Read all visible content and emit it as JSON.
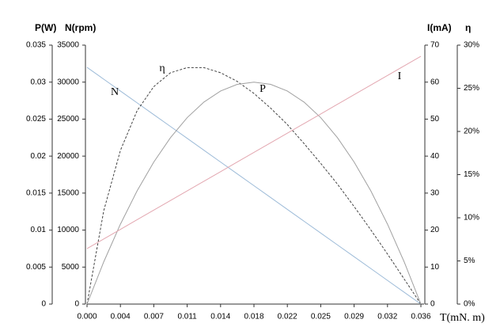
{
  "chart_data": {
    "type": "line",
    "y_label": "P(W)",
    "y2_label": "N(rpm)",
    "y3_label": "I(mA)",
    "y4_label": "η",
    "x_label": "T(mN. m)",
    "x": [
      0,
      0.0018,
      0.0036,
      0.0054,
      0.0072,
      0.009,
      0.0108,
      0.0126,
      0.0144,
      0.0162,
      0.018,
      0.0198,
      0.0216,
      0.0234,
      0.0252,
      0.027,
      0.0288,
      0.0306,
      0.0324,
      0.0342,
      0.036
    ],
    "xlim": [
      0,
      0.036
    ],
    "xticks": [
      {
        "value": 0,
        "label": "0.000"
      },
      {
        "value": 0.0036,
        "label": "0.004"
      },
      {
        "value": 0.0072,
        "label": "0.007"
      },
      {
        "value": 0.0108,
        "label": "0.011"
      },
      {
        "value": 0.0144,
        "label": "0.014"
      },
      0.018,
      {
        "value": 0.0216,
        "label": "0.022"
      },
      {
        "value": 0.0252,
        "label": "0.025"
      },
      {
        "value": 0.0288,
        "label": "0.029"
      },
      {
        "value": 0.0324,
        "label": "0.032"
      },
      0.036
    ],
    "ylim": [
      0,
      0.035
    ],
    "yticks": [
      0,
      0.005,
      0.01,
      0.015,
      0.02,
      0.025,
      0.03,
      0.035
    ],
    "y2lim": [
      0,
      35000
    ],
    "y2ticks": [
      0,
      5000,
      10000,
      15000,
      20000,
      25000,
      30000,
      35000
    ],
    "y3lim": [
      0,
      70
    ],
    "y3ticks": [
      0,
      10,
      20,
      30,
      40,
      50,
      60,
      70
    ],
    "y4lim": [
      0,
      30
    ],
    "y4ticks": [
      {
        "value": 0,
        "label": "0%"
      },
      {
        "value": 5,
        "label": "5%"
      },
      {
        "value": 10,
        "label": "10%"
      },
      {
        "value": 15,
        "label": "15%"
      },
      {
        "value": 20,
        "label": "20%"
      },
      {
        "value": 25,
        "label": "25%"
      },
      {
        "value": 30,
        "label": "30%"
      }
    ],
    "series": [
      {
        "name": "N",
        "color": "#9dbbd8",
        "axis": "y2",
        "dashed": false,
        "values": [
          32000,
          30400,
          28800,
          27200,
          25600,
          24000,
          22400,
          20800,
          19200,
          17600,
          16000,
          14400,
          12800,
          11200,
          9600,
          8000,
          6400,
          4800,
          3200,
          1600,
          0
        ]
      },
      {
        "name": "η",
        "color": "#444444",
        "axis": "y4",
        "dashed": true,
        "values": [
          0,
          10.8,
          17.8,
          22.4,
          25.2,
          26.8,
          27.4,
          27.4,
          26.8,
          25.8,
          24.4,
          22.7,
          20.8,
          18.6,
          16.3,
          13.9,
          11.3,
          8.6,
          5.8,
          2.9,
          0
        ]
      },
      {
        "name": "P",
        "color": "#a0a0a0",
        "axis": "y",
        "dashed": false,
        "values": [
          0,
          0.0057,
          0.0108,
          0.0153,
          0.0192,
          0.0225,
          0.0252,
          0.0273,
          0.0288,
          0.0297,
          0.03,
          0.0297,
          0.0288,
          0.0273,
          0.0252,
          0.0225,
          0.0192,
          0.0153,
          0.0108,
          0.0057,
          0
        ]
      },
      {
        "name": "I",
        "color": "#e3a7b0",
        "axis": "y3",
        "dashed": false,
        "values": [
          15,
          17.6,
          20.2,
          22.8,
          25.4,
          28,
          30.6,
          33.2,
          35.8,
          38.4,
          41,
          43.6,
          46.2,
          48.8,
          51.4,
          54,
          56.6,
          59.2,
          61.8,
          64.4,
          67
        ]
      }
    ]
  }
}
